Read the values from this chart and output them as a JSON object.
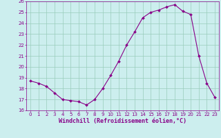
{
  "x": [
    0,
    1,
    2,
    3,
    4,
    5,
    6,
    7,
    8,
    9,
    10,
    11,
    12,
    13,
    14,
    15,
    16,
    17,
    18,
    19,
    20,
    21,
    22,
    23
  ],
  "y": [
    18.7,
    18.5,
    18.2,
    17.6,
    17.0,
    16.9,
    16.8,
    16.5,
    17.0,
    18.0,
    19.2,
    20.5,
    22.0,
    23.2,
    24.5,
    25.0,
    25.2,
    25.5,
    25.7,
    25.1,
    24.8,
    21.0,
    18.5,
    17.2
  ],
  "line_color": "#880088",
  "marker": "D",
  "marker_size": 2.0,
  "bg_color": "#cceeee",
  "grid_color": "#99ccbb",
  "xlabel": "Windchill (Refroidissement éolien,°C)",
  "xlabel_color": "#880088",
  "ylim": [
    16,
    26
  ],
  "xlim": [
    -0.5,
    23.5
  ],
  "yticks": [
    16,
    17,
    18,
    19,
    20,
    21,
    22,
    23,
    24,
    25,
    26
  ],
  "xticks": [
    0,
    1,
    2,
    3,
    4,
    5,
    6,
    7,
    8,
    9,
    10,
    11,
    12,
    13,
    14,
    15,
    16,
    17,
    18,
    19,
    20,
    21,
    22,
    23
  ],
  "tick_color": "#880088",
  "tick_fontsize": 5.0,
  "xlabel_fontsize": 6.0,
  "linewidth": 0.8
}
